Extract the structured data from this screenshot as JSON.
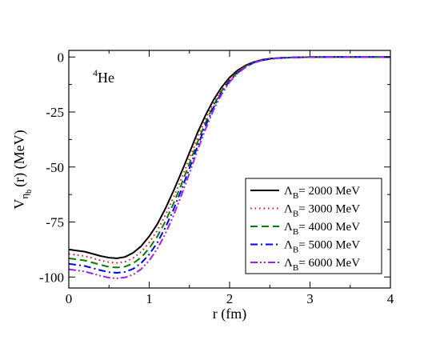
{
  "chart_data": {
    "type": "line",
    "annotation": {
      "sup": "4",
      "main": "He"
    },
    "xlabel": "r  (fm)",
    "ylabel": {
      "main": "V",
      "sub": "η",
      "subsub": "b",
      "rest": "(r)  (MeV)"
    },
    "xlim": [
      0,
      4
    ],
    "ylim": [
      -105,
      3
    ],
    "xticks": [
      0,
      1,
      2,
      3,
      4
    ],
    "yticks": [
      0,
      -25,
      -50,
      -75,
      -100
    ],
    "grid": false,
    "legend_position": "bottom-right",
    "x": [
      0,
      0.2,
      0.4,
      0.5,
      0.6,
      0.7,
      0.8,
      0.9,
      1.0,
      1.1,
      1.2,
      1.3,
      1.4,
      1.5,
      1.6,
      1.7,
      1.8,
      1.9,
      2.0,
      2.1,
      2.2,
      2.3,
      2.4,
      2.5,
      2.6,
      2.8,
      3.0,
      3.2,
      3.5,
      4.0
    ],
    "series": [
      {
        "name": "= 2000 MeV",
        "color": "#000000",
        "dash": "",
        "values": [
          -87.5,
          -88.5,
          -90.5,
          -91.2,
          -91.5,
          -90.9,
          -89.0,
          -86.0,
          -81.5,
          -76.0,
          -69.0,
          -61.0,
          -52.5,
          -43.5,
          -34.5,
          -26.5,
          -19.5,
          -13.8,
          -9.3,
          -6.0,
          -3.8,
          -2.3,
          -1.3,
          -0.8,
          -0.45,
          -0.15,
          -0.05,
          -0.02,
          0,
          0
        ]
      },
      {
        "name": "= 3000 MeV",
        "color": "#ff0000",
        "dash": "1.5,4",
        "values": [
          -89.5,
          -90.5,
          -92.5,
          -93.3,
          -93.6,
          -93.1,
          -91.4,
          -88.6,
          -84.3,
          -78.9,
          -72.0,
          -64.0,
          -55.3,
          -46.1,
          -36.8,
          -28.3,
          -20.8,
          -14.7,
          -9.9,
          -6.4,
          -4.0,
          -2.4,
          -1.4,
          -0.85,
          -0.5,
          -0.17,
          -0.06,
          -0.02,
          0,
          0
        ]
      },
      {
        "name": "= 4000 MeV",
        "color": "#008000",
        "dash": "9,5",
        "values": [
          -91.5,
          -92.5,
          -94.5,
          -95.4,
          -95.7,
          -95.3,
          -93.8,
          -91.1,
          -87.0,
          -81.6,
          -74.8,
          -66.8,
          -57.9,
          -48.4,
          -38.8,
          -29.9,
          -22.0,
          -15.5,
          -10.4,
          -6.8,
          -4.2,
          -2.5,
          -1.5,
          -0.9,
          -0.5,
          -0.18,
          -0.06,
          -0.02,
          0,
          0
        ]
      },
      {
        "name": "= 5000 MeV",
        "color": "#0000ff",
        "dash": "9,4,2,4",
        "values": [
          -94.0,
          -95.0,
          -97.0,
          -97.8,
          -98.1,
          -97.7,
          -96.3,
          -93.7,
          -89.7,
          -84.4,
          -77.6,
          -69.5,
          -60.4,
          -50.6,
          -40.6,
          -31.3,
          -23.0,
          -16.2,
          -10.9,
          -7.1,
          -4.4,
          -2.6,
          -1.55,
          -0.9,
          -0.5,
          -0.18,
          -0.06,
          -0.02,
          0,
          0
        ]
      },
      {
        "name": "= 6000 MeV",
        "color": "#a020f0",
        "dash": "9,3,2,3,2,3",
        "values": [
          -96.5,
          -97.5,
          -99.5,
          -100.3,
          -100.6,
          -100.2,
          -98.9,
          -96.4,
          -92.5,
          -87.2,
          -80.4,
          -72.2,
          -62.9,
          -52.8,
          -42.5,
          -32.8,
          -24.1,
          -17.0,
          -11.4,
          -7.4,
          -4.6,
          -2.7,
          -1.6,
          -0.95,
          -0.55,
          -0.19,
          -0.06,
          -0.02,
          0,
          0
        ]
      }
    ],
    "legend_symbol": {
      "main": "Λ",
      "sub": "B"
    }
  }
}
